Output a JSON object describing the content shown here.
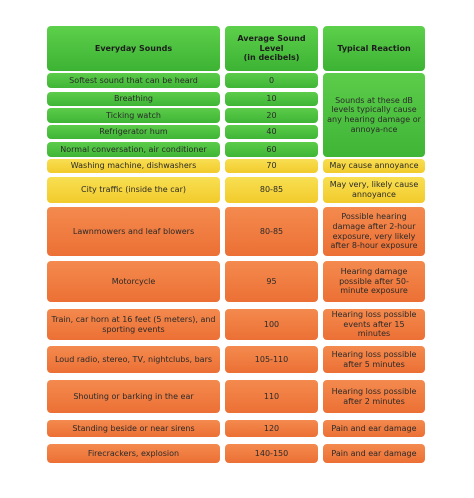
{
  "table": {
    "header": [
      "Everyday Sounds",
      {
        "title": "Average Sound Level",
        "unit": "(in decibels)"
      },
      "Typical Reaction"
    ],
    "rows": [
      [
        "Softest sound that can be heard",
        "0",
        "Sounds at these dB levels typically cause any hearing damage or annoya-nce"
      ],
      [
        "Breathing",
        "10"
      ],
      [
        "Ticking watch",
        "20"
      ],
      [
        "Refrigerator hum",
        "40"
      ],
      [
        "Normal conversation, air conditioner",
        "60"
      ],
      [
        "Washing machine, dishwashers",
        "70",
        "May cause annoyance"
      ],
      [
        "City traffic (inside the car)",
        "80-85",
        "May very, likely cause annoyance"
      ],
      [
        "Lawnmowers and leaf blowers",
        "80-85",
        "Possible hearing damage after 2-hour exposure, very likely after 8-hour exposure"
      ],
      [
        "Motorcycle",
        "95",
        "Hearing damage possible after 50-minute exposure"
      ],
      [
        "Train, car horn at 16 feet (5 meters), and sporting events",
        "100",
        "Hearing loss possible events after 15 minutes"
      ],
      [
        "Loud radio, stereo, TV, nightclubs, bars",
        "105-110",
        "Hearing loss possible after 5 minutes"
      ],
      [
        "Shouting or barking in the ear",
        "110",
        "Hearing loss possible after 2 minutes"
      ],
      [
        "Standing beside or near sirens",
        "120",
        "Pain and ear damage"
      ],
      [
        "Firecrackers, explosion",
        "140-150",
        "Pain and ear damage"
      ]
    ]
  }
}
